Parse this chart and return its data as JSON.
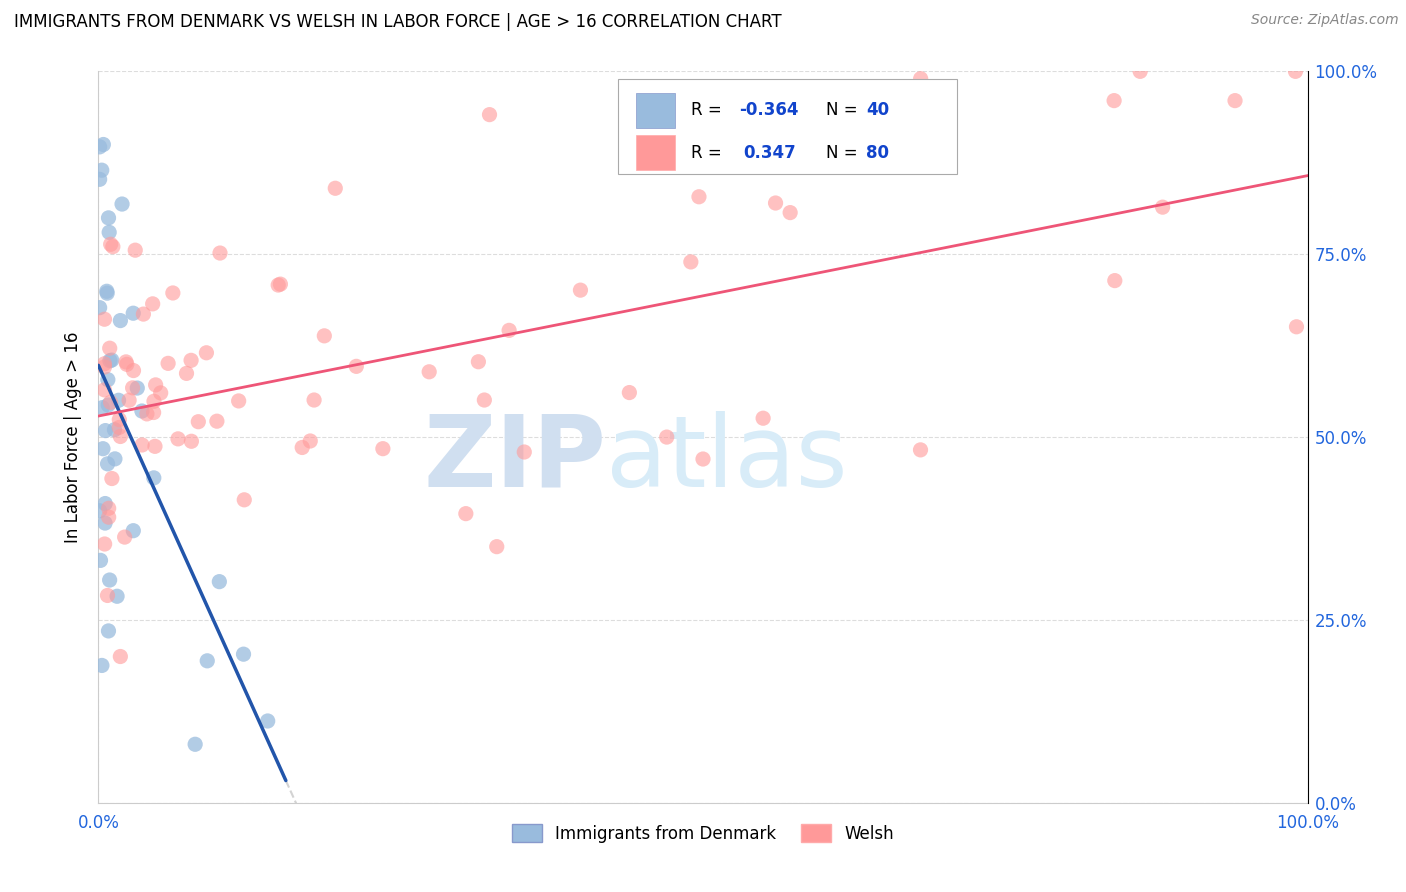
{
  "title": "IMMIGRANTS FROM DENMARK VS WELSH IN LABOR FORCE | AGE > 16 CORRELATION CHART",
  "source": "Source: ZipAtlas.com",
  "ylabel": "In Labor Force | Age > 16",
  "ytick_labels": [
    "0.0%",
    "25.0%",
    "50.0%",
    "75.0%",
    "100.0%"
  ],
  "ytick_values": [
    0.0,
    0.25,
    0.5,
    0.75,
    1.0
  ],
  "legend_label1": "Immigrants from Denmark",
  "legend_label2": "Welsh",
  "R1": -0.364,
  "N1": 40,
  "R2": 0.347,
  "N2": 80,
  "color_blue": "#99BBDD",
  "color_pink": "#FF9999",
  "color_blue_line": "#2255AA",
  "color_pink_line": "#EE5577",
  "watermark_zip_color": "#C8D8F0",
  "watermark_atlas_color": "#D0E8FF"
}
